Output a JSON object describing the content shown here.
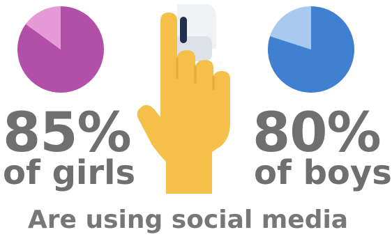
{
  "chart_data": [
    {
      "type": "pie",
      "group": "girls",
      "values": [
        85,
        15
      ],
      "percent_label": "85%",
      "group_label": "of girls",
      "colors": [
        "#b24fa8",
        "#e79ad8"
      ]
    },
    {
      "type": "pie",
      "group": "boys",
      "values": [
        80,
        20
      ],
      "percent_label": "80%",
      "group_label": "of boys",
      "colors": [
        "#3f80d1",
        "#a9c9f0"
      ]
    }
  ],
  "caption": "Are using social media",
  "icons": {
    "center": "pointing-hand-icon"
  },
  "colors": {
    "text": "#6f6f6f",
    "hand": "#f4c04a",
    "cuff_shadow": "#e7ad33"
  }
}
